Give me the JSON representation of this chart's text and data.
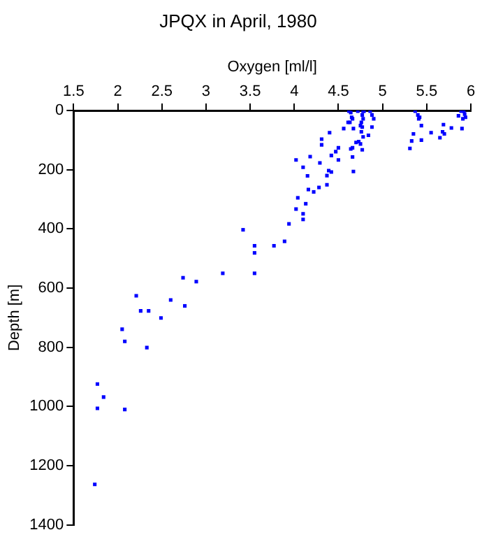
{
  "chart_data": {
    "type": "scatter",
    "title": "JPQX in April, 1980",
    "xlabel": "Oxygen [ml/l]",
    "ylabel": "Depth [m]",
    "xlim": [
      1.5,
      6
    ],
    "xticks": [
      1.5,
      2,
      2.5,
      3,
      3.5,
      4,
      4.5,
      5,
      5.5,
      6
    ],
    "ylim": [
      1400,
      0
    ],
    "yticks": [
      0,
      200,
      400,
      600,
      800,
      1000,
      1200,
      1400
    ],
    "grid": false,
    "legend": false,
    "marker": "square",
    "series": [
      {
        "color": "#0000ff",
        "x": [
          4.62,
          4.64,
          4.65,
          4.66,
          4.61,
          4.63,
          4.72,
          4.78,
          4.79,
          4.77,
          4.78,
          4.76,
          4.75,
          4.77,
          4.76,
          4.78,
          4.86,
          4.88,
          4.9,
          4.88,
          4.84,
          4.56,
          4.67,
          4.7,
          4.73,
          4.75,
          4.64,
          4.66,
          4.77,
          4.66,
          4.67,
          4.5,
          4.47,
          4.42,
          4.5,
          4.4,
          4.31,
          4.31,
          4.18,
          4.02,
          4.29,
          4.1,
          4.39,
          4.42,
          4.37,
          4.15,
          4.28,
          4.37,
          4.16,
          4.22,
          4.13,
          4.04,
          4.02,
          4.1,
          4.1,
          3.94,
          3.42,
          3.55,
          3.77,
          3.89,
          3.55,
          3.19,
          3.55,
          5.37,
          5.4,
          5.42,
          5.41,
          5.44,
          5.35,
          5.33,
          5.31,
          5.44,
          5.55,
          5.65,
          5.68,
          5.7,
          5.69,
          5.78,
          5.89,
          5.92,
          5.93,
          5.86,
          5.91,
          5.9,
          5.94,
          2.74,
          2.89,
          2.21,
          2.6,
          2.26,
          2.35,
          2.76,
          2.49,
          2.05,
          2.08,
          2.33,
          1.77,
          1.84,
          1.77,
          2.08,
          1.74
        ],
        "values": [
          2,
          7,
          23,
          28,
          40,
          40,
          2,
          2,
          2,
          15,
          28,
          40,
          51,
          56,
          72,
          89,
          2,
          15,
          28,
          56,
          84,
          61,
          61,
          108,
          105,
          113,
          130,
          126,
          133,
          157,
          206,
          126,
          139,
          152,
          167,
          75,
          97,
          116,
          156,
          167,
          177,
          192,
          203,
          208,
          220,
          221,
          260,
          251,
          267,
          275,
          315,
          295,
          333,
          349,
          368,
          383,
          403,
          457,
          457,
          442,
          481,
          550,
          550,
          2,
          15,
          23,
          28,
          51,
          79,
          103,
          128,
          100,
          75,
          92,
          72,
          79,
          48,
          59,
          2,
          2,
          12,
          18,
          28,
          61,
          23,
          565,
          578,
          626,
          640,
          677,
          677,
          660,
          701,
          739,
          780,
          801,
          924,
          968,
          1006,
          1010,
          1263
        ]
      }
    ]
  }
}
